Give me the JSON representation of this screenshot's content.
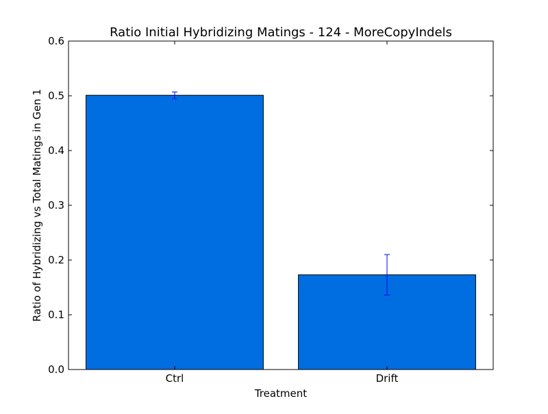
{
  "chart_data": {
    "type": "bar",
    "title": "Ratio Initial Hybridizing Matings - 124 - MoreCopyIndels",
    "xlabel": "Treatment",
    "ylabel": "Ratio of Hybridizing vs Total Matings in Gen 1",
    "categories": [
      "Ctrl",
      "Drift"
    ],
    "values": [
      0.501,
      0.173
    ],
    "error_low": [
      0.495,
      0.136
    ],
    "error_high": [
      0.507,
      0.21
    ],
    "ylim": [
      0,
      0.6
    ],
    "yticks": [
      0.0,
      0.1,
      0.2,
      0.3,
      0.4,
      0.5,
      0.6
    ],
    "ytick_labels": [
      "0.0",
      "0.1",
      "0.2",
      "0.3",
      "0.4",
      "0.5",
      "0.6"
    ],
    "grid": false,
    "legend": false,
    "colors": {
      "bar": "#006ee0",
      "bar_edge": "#000000",
      "error_bar": "#0000ff",
      "axes": "#000000",
      "background": "#ffffff"
    }
  }
}
